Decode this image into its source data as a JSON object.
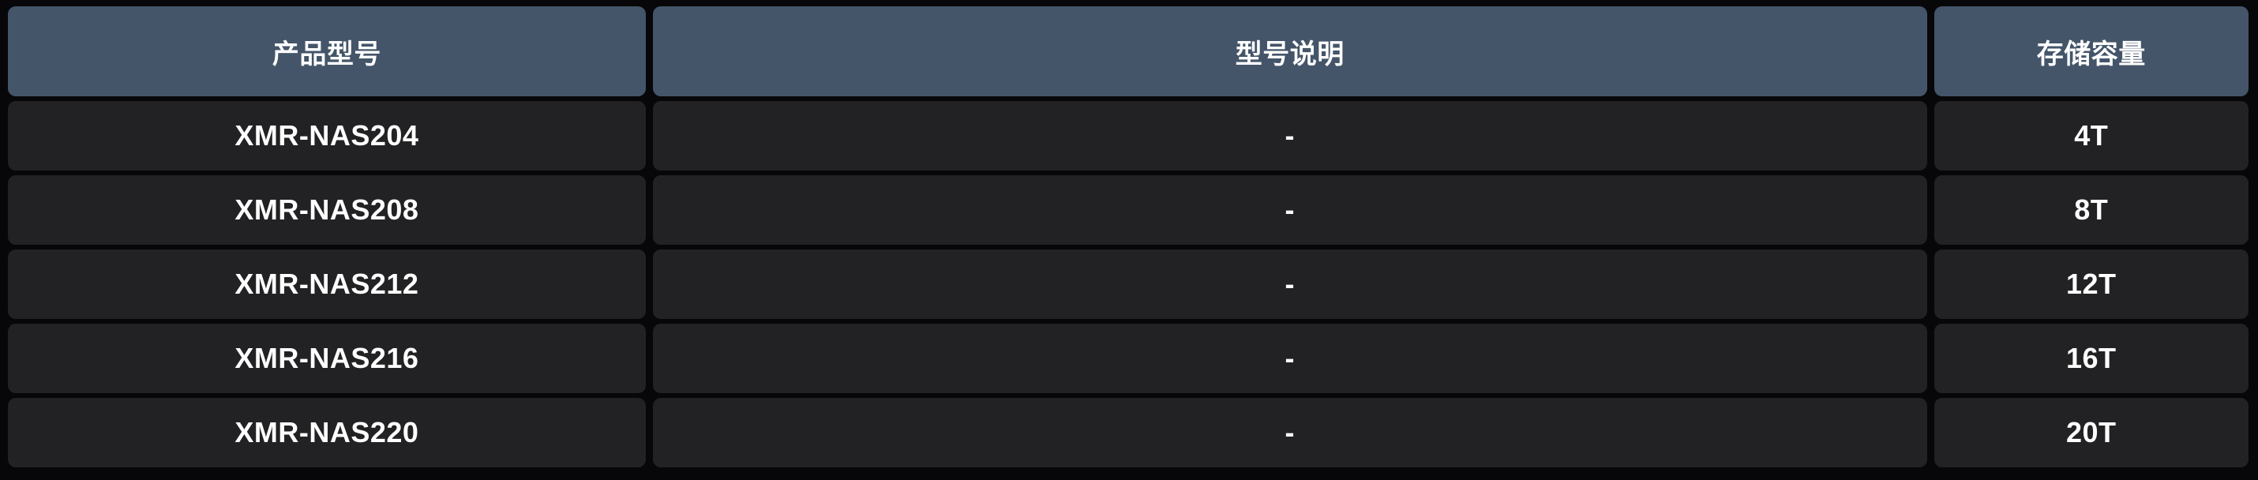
{
  "table": {
    "columns": [
      {
        "label": "产品型号"
      },
      {
        "label": "型号说明"
      },
      {
        "label": "存储容量"
      }
    ],
    "rows": [
      {
        "model": "XMR-NAS204",
        "description": "-",
        "capacity": "4T"
      },
      {
        "model": "XMR-NAS208",
        "description": "-",
        "capacity": "8T"
      },
      {
        "model": "XMR-NAS212",
        "description": "-",
        "capacity": "12T"
      },
      {
        "model": "XMR-NAS216",
        "description": "-",
        "capacity": "16T"
      },
      {
        "model": "XMR-NAS220",
        "description": "-",
        "capacity": "20T"
      }
    ]
  },
  "colors": {
    "page_bg": "#070709",
    "header_bg": "#445569",
    "cell_bg": "#222224",
    "text": "#ffffff"
  }
}
